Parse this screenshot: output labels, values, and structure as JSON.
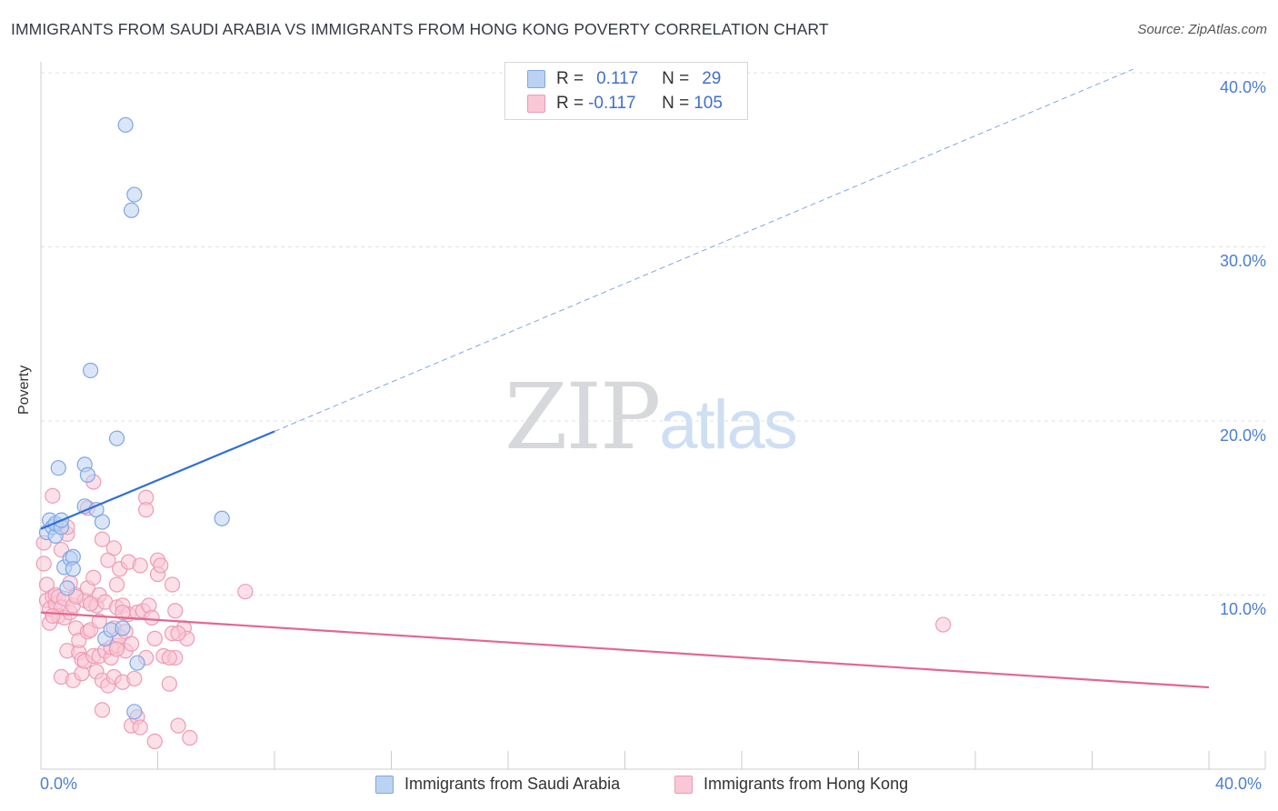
{
  "header": {
    "title": "IMMIGRANTS FROM SAUDI ARABIA VS IMMIGRANTS FROM HONG KONG POVERTY CORRELATION CHART",
    "source": "Source: ZipAtlas.com"
  },
  "watermark": {
    "zip": "ZIP",
    "atlas": "atlas"
  },
  "legend": {
    "r_label": "R =",
    "n_label": "N =",
    "series": [
      {
        "r": "0.117",
        "n": "29"
      },
      {
        "r": "-0.117",
        "n": "105"
      }
    ]
  },
  "chart_data": {
    "type": "scatter",
    "title": "IMMIGRANTS FROM SAUDI ARABIA VS IMMIGRANTS FROM HONG KONG POVERTY CORRELATION CHART",
    "xlabel": "",
    "ylabel": "Poverty",
    "xlim": [
      0,
      40
    ],
    "ylim": [
      0,
      40
    ],
    "x_tick_labels": [
      "0.0%",
      "40.0%"
    ],
    "y_ticks": [
      {
        "value": 10,
        "label": "10.0%"
      },
      {
        "value": 20,
        "label": "20.0%"
      },
      {
        "value": 30,
        "label": "30.0%"
      },
      {
        "value": 40,
        "label": "40.0%"
      }
    ],
    "colors": {
      "saudi": "#7fa6e3",
      "saudi_fill": "#bcd2f3",
      "saudi_line": "#2f6fd6",
      "hk": "#ee9bb5",
      "hk_fill": "#f9c7d6",
      "hk_line": "#e5668f",
      "grid": "#e0e0e0"
    },
    "series": [
      {
        "name": "Immigrants from Saudi Arabia",
        "r": 0.117,
        "n": 29,
        "trend": {
          "solid": [
            [
              0,
              13.8
            ],
            [
              8,
              19.4
            ]
          ],
          "dashed": [
            [
              8,
              19.4
            ],
            [
              37.4,
              40.2
            ]
          ]
        },
        "points": [
          [
            0.2,
            13.6
          ],
          [
            0.3,
            14.3
          ],
          [
            0.4,
            13.9
          ],
          [
            0.5,
            13.4
          ],
          [
            0.5,
            14.1
          ],
          [
            0.6,
            17.3
          ],
          [
            0.7,
            13.9
          ],
          [
            0.7,
            14.3
          ],
          [
            0.8,
            11.6
          ],
          [
            0.9,
            10.4
          ],
          [
            1.0,
            12.1
          ],
          [
            1.1,
            12.2
          ],
          [
            1.1,
            11.5
          ],
          [
            1.5,
            15.1
          ],
          [
            1.5,
            17.5
          ],
          [
            1.6,
            16.9
          ],
          [
            1.7,
            22.9
          ],
          [
            1.9,
            14.9
          ],
          [
            2.1,
            14.2
          ],
          [
            2.2,
            7.5
          ],
          [
            2.4,
            8.0
          ],
          [
            2.6,
            19.0
          ],
          [
            2.8,
            8.1
          ],
          [
            2.9,
            37.0
          ],
          [
            3.1,
            32.1
          ],
          [
            3.2,
            3.3
          ],
          [
            3.2,
            33.0
          ],
          [
            3.3,
            6.1
          ],
          [
            6.2,
            14.4
          ]
        ]
      },
      {
        "name": "Immigrants from Hong Kong",
        "r": -0.117,
        "n": 105,
        "trend": {
          "solid": [
            [
              0,
              9.0
            ],
            [
              40,
              4.7
            ]
          ]
        },
        "points": [
          [
            0.1,
            11.8
          ],
          [
            0.1,
            13.0
          ],
          [
            0.2,
            10.6
          ],
          [
            0.2,
            9.7
          ],
          [
            0.3,
            9.2
          ],
          [
            0.3,
            8.4
          ],
          [
            0.4,
            9.9
          ],
          [
            0.4,
            15.7
          ],
          [
            0.5,
            9.5
          ],
          [
            0.5,
            10.0
          ],
          [
            0.6,
            8.8
          ],
          [
            0.6,
            9.9
          ],
          [
            0.7,
            9.3
          ],
          [
            0.7,
            12.6
          ],
          [
            0.7,
            5.3
          ],
          [
            0.8,
            8.7
          ],
          [
            0.8,
            9.8
          ],
          [
            0.9,
            6.8
          ],
          [
            0.9,
            13.5
          ],
          [
            0.9,
            13.9
          ],
          [
            1.0,
            9.0
          ],
          [
            1.0,
            10.7
          ],
          [
            1.1,
            5.1
          ],
          [
            1.1,
            9.4
          ],
          [
            1.2,
            10.0
          ],
          [
            1.2,
            8.1
          ],
          [
            1.3,
            6.7
          ],
          [
            1.3,
            7.4
          ],
          [
            1.4,
            5.5
          ],
          [
            1.4,
            6.3
          ],
          [
            1.5,
            9.7
          ],
          [
            1.5,
            6.2
          ],
          [
            1.6,
            15.0
          ],
          [
            1.6,
            10.4
          ],
          [
            1.6,
            7.9
          ],
          [
            1.7,
            8.0
          ],
          [
            1.7,
            9.5
          ],
          [
            1.8,
            6.5
          ],
          [
            1.8,
            11.0
          ],
          [
            1.8,
            16.5
          ],
          [
            1.9,
            5.6
          ],
          [
            1.9,
            9.4
          ],
          [
            2.0,
            6.5
          ],
          [
            2.0,
            8.5
          ],
          [
            2.0,
            10.0
          ],
          [
            2.1,
            5.1
          ],
          [
            2.1,
            3.4
          ],
          [
            2.1,
            13.2
          ],
          [
            2.2,
            9.6
          ],
          [
            2.2,
            6.8
          ],
          [
            2.3,
            12.0
          ],
          [
            2.3,
            4.8
          ],
          [
            2.4,
            6.4
          ],
          [
            2.4,
            7.0
          ],
          [
            2.5,
            5.3
          ],
          [
            2.5,
            8.1
          ],
          [
            2.5,
            12.7
          ],
          [
            2.6,
            10.6
          ],
          [
            2.6,
            9.3
          ],
          [
            2.6,
            7.1
          ],
          [
            2.7,
            11.5
          ],
          [
            2.7,
            7.6
          ],
          [
            2.8,
            5.0
          ],
          [
            2.8,
            9.4
          ],
          [
            2.9,
            7.9
          ],
          [
            2.9,
            6.8
          ],
          [
            3.0,
            8.9
          ],
          [
            3.0,
            11.9
          ],
          [
            3.1,
            2.5
          ],
          [
            3.1,
            7.2
          ],
          [
            3.2,
            5.2
          ],
          [
            3.3,
            9.0
          ],
          [
            3.3,
            3.0
          ],
          [
            3.4,
            11.7
          ],
          [
            3.4,
            2.4
          ],
          [
            3.5,
            9.1
          ],
          [
            3.6,
            15.6
          ],
          [
            3.6,
            14.9
          ],
          [
            3.7,
            9.4
          ],
          [
            3.8,
            8.7
          ],
          [
            3.9,
            1.6
          ],
          [
            3.9,
            7.5
          ],
          [
            4.0,
            12.0
          ],
          [
            4.0,
            11.2
          ],
          [
            4.1,
            11.7
          ],
          [
            4.2,
            6.5
          ],
          [
            4.4,
            4.9
          ],
          [
            4.5,
            10.6
          ],
          [
            4.6,
            6.4
          ],
          [
            4.7,
            2.5
          ],
          [
            4.9,
            8.1
          ],
          [
            4.4,
            6.4
          ],
          [
            4.5,
            7.8
          ],
          [
            5.0,
            7.5
          ],
          [
            5.1,
            1.8
          ],
          [
            4.7,
            7.8
          ],
          [
            4.6,
            9.1
          ],
          [
            2.8,
            9.0
          ],
          [
            1.7,
            9.5
          ],
          [
            0.4,
            8.8
          ],
          [
            3.6,
            6.4
          ],
          [
            2.6,
            6.9
          ],
          [
            7.0,
            10.2
          ],
          [
            30.9,
            8.3
          ],
          [
            1.2,
            9.9
          ]
        ]
      }
    ]
  },
  "bottom_legend": {
    "items": [
      {
        "label": "Immigrants from Saudi Arabia"
      },
      {
        "label": "Immigrants from Hong Kong"
      }
    ]
  }
}
